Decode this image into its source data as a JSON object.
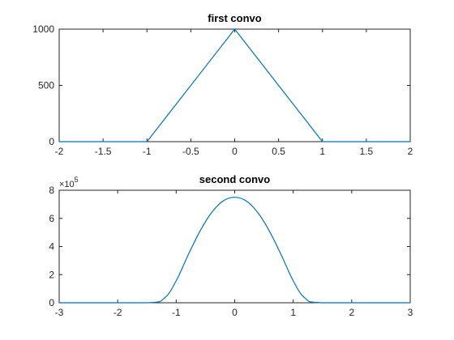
{
  "chart_data": [
    {
      "type": "line",
      "title": "first convo",
      "xlim": [
        -2,
        2
      ],
      "ylim": [
        0,
        1000
      ],
      "xticks": [
        -2,
        -1.5,
        -1,
        -0.5,
        0,
        0.5,
        1,
        1.5,
        2
      ],
      "xtick_labels": [
        "-2",
        "-1.5",
        "-1",
        "-0.5",
        "0",
        "0.5",
        "1",
        "1.5",
        "2"
      ],
      "yticks": [
        0,
        500,
        1000
      ],
      "ytick_labels": [
        "0",
        "500",
        "1000"
      ],
      "exponent_label": null,
      "grid": false,
      "series": [
        {
          "color": "#0072BD",
          "x": [
            -2,
            -1,
            0,
            1,
            2
          ],
          "y": [
            0,
            0,
            1000,
            0,
            0
          ]
        }
      ]
    },
    {
      "type": "line",
      "title": "second convo",
      "xlim": [
        -3,
        3
      ],
      "ylim": [
        0,
        8
      ],
      "xticks": [
        -3,
        -2,
        -1,
        0,
        1,
        2,
        3
      ],
      "xtick_labels": [
        "-3",
        "-2",
        "-1",
        "0",
        "1",
        "2",
        "3"
      ],
      "yticks": [
        0,
        2,
        4,
        6,
        8
      ],
      "ytick_labels": [
        "0",
        "2",
        "4",
        "6",
        "8"
      ],
      "exponent_label": {
        "base": "×10",
        "power": "5"
      },
      "grid": false,
      "series": [
        {
          "color": "#0072BD",
          "x": [
            -3,
            -1.5,
            -1.2,
            -1,
            -0.8,
            -0.6,
            -0.4,
            -0.2,
            0,
            0.2,
            0.4,
            0.6,
            0.8,
            1,
            1.2,
            1.5,
            3
          ],
          "y": [
            0,
            0,
            0.34,
            1.56,
            3.36,
            5.04,
            6.38,
            7.23,
            7.5,
            7.23,
            6.38,
            5.04,
            3.36,
            1.56,
            0.34,
            0,
            0
          ]
        }
      ]
    }
  ]
}
